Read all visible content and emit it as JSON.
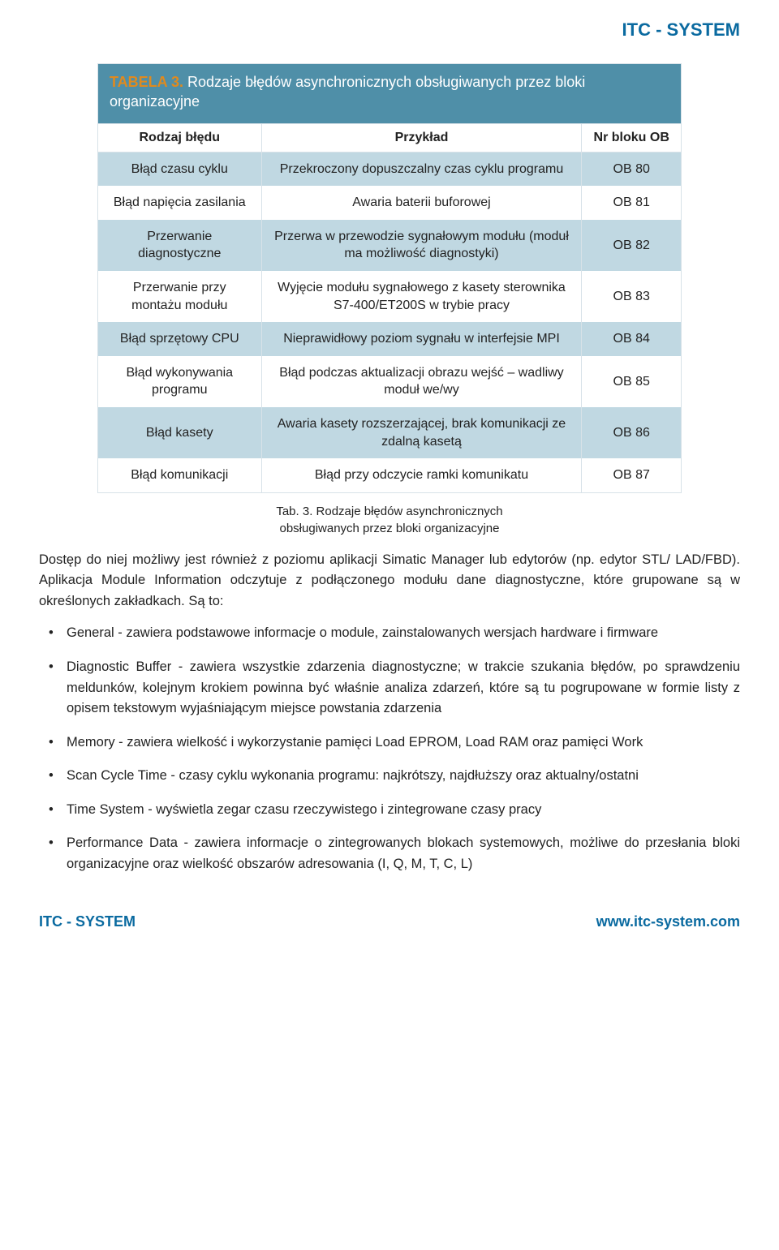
{
  "brand_header": "ITC - SYSTEM",
  "brand_color": "#0a6aa0",
  "table": {
    "caption_label": "TABELA 3.",
    "caption_label_color": "#e08a1e",
    "caption_text": "Rodzaje błędów asynchronicznych obsługiwanych przez bloki organizacyjne",
    "caption_bg": "#4f8fa8",
    "caption_text_color": "#ffffff",
    "header_bg": "#ffffff",
    "row_odd_bg": "#c0d8e2",
    "row_even_bg": "#ffffff",
    "border_color": "#d8e2e8",
    "columns": [
      "Rodzaj błędu",
      "Przykład",
      "Nr bloku OB"
    ],
    "rows": [
      [
        "Błąd czasu cyklu",
        "Przekroczony dopuszczalny czas cyklu programu",
        "OB 80"
      ],
      [
        "Błąd napięcia zasilania",
        "Awaria baterii buforowej",
        "OB 81"
      ],
      [
        "Przerwanie diagnostyczne",
        "Przerwa w przewodzie sygnałowym modułu (moduł ma możliwość diagnostyki)",
        "OB 82"
      ],
      [
        "Przerwanie przy montażu modułu",
        "Wyjęcie modułu sygnałowego z kasety sterownika S7-400/ET200S w trybie pracy",
        "OB 83"
      ],
      [
        "Błąd sprzętowy CPU",
        "Nieprawidłowy poziom sygnału w interfejsie MPI",
        "OB 84"
      ],
      [
        "Błąd wykonywania programu",
        "Błąd podczas aktualizacji obrazu wejść – wadliwy moduł we/wy",
        "OB 85"
      ],
      [
        "Błąd kasety",
        "Awaria kasety rozszerzającej, brak komunikacji ze zdalną kasetą",
        "OB 86"
      ],
      [
        "Błąd komunikacji",
        "Błąd przy odczycie ramki komunikatu",
        "OB 87"
      ]
    ]
  },
  "subtitle_line1": "Tab. 3. Rodzaje błędów asynchronicznych",
  "subtitle_line2": "obsługiwanych przez bloki organizacyjne",
  "paragraph": "Dostęp do niej możliwy jest również z poziomu aplikacji Simatic Manager lub edytorów (np. edytor STL/ LAD/FBD). Aplikacja Module Information odczytuje z podłączonego modułu dane diagnostyczne, które grupowane są w określonych zakładkach. Są to:",
  "bullets": [
    "General - zawiera podstawowe informacje o module, zainstalowanych wersjach hardware i firmware",
    "Diagnostic Buffer - zawiera wszystkie zdarzenia diagnostyczne; w trakcie szukania błędów, po sprawdzeniu meldunków, kolejnym krokiem powinna być właśnie analiza zdarzeń, które są tu pogrupowane w formie listy z opisem tekstowym wyjaśniającym miejsce powstania zdarzenia",
    "Memory - zawiera wielkość i wykorzystanie pamięci Load EPROM, Load RAM oraz pamięci Work",
    "Scan Cycle Time - czasy cyklu wykonania programu: najkrótszy, najdłuższy oraz aktualny/ostatni",
    "Time System - wyświetla zegar czasu rzeczywistego i zintegrowane czasy pracy",
    "Performance Data - zawiera informacje o zintegrowanych blokach systemowych, możliwe do przesłania bloki organizacyjne oraz wielkość obszarów adresowania (I, Q, M, T, C, L)"
  ],
  "footer_left": "ITC - SYSTEM",
  "footer_right": "www.itc-system.com"
}
